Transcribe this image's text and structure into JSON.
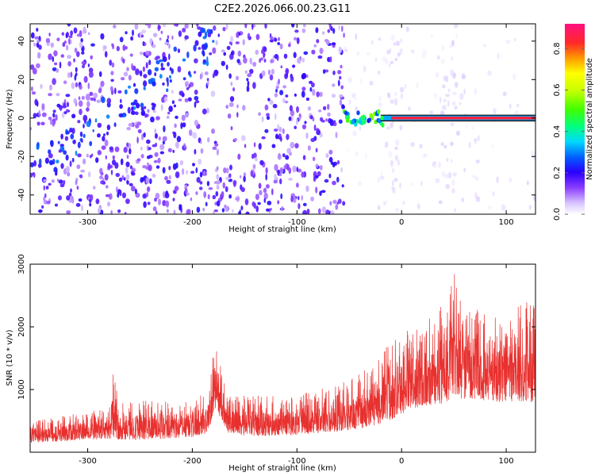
{
  "figure_title": "C2E2.2026.066.00.23.G11",
  "colors": {
    "snr_line": "#e8312f",
    "frame": "#000000"
  },
  "chart_data": [
    {
      "type": "heatmap",
      "title": "C2E2.2026.066.00.23.G11",
      "xlabel": "Height of straight line (km)",
      "ylabel": "Frequency (Hz)",
      "xlim": [
        -355,
        128
      ],
      "ylim": [
        -50,
        49
      ],
      "xticks": [
        -300,
        -200,
        -100,
        0,
        100
      ],
      "xtick_labels": [
        "-300",
        "-200",
        "-100",
        "0",
        "100"
      ],
      "yticks": [
        -40,
        -20,
        0,
        20,
        40
      ],
      "ytick_labels": [
        "-40",
        "-20",
        "0",
        "20",
        "40"
      ],
      "colorbar": {
        "label": "Normalized spectral amplitude",
        "range": [
          0,
          0.92
        ],
        "ticks": [
          0.0,
          0.2,
          0.4,
          0.6,
          0.8
        ],
        "tick_labels": [
          "0.0",
          "0.2",
          "0.4",
          "0.6",
          "0.8"
        ],
        "colormap": [
          "#ffffff",
          "#c8a8ff",
          "#7a2cff",
          "#2a00ff",
          "#0080ff",
          "#00e0ff",
          "#00ff60",
          "#a0ff00",
          "#ffff00",
          "#ff9000",
          "#ff2030",
          "#ff1080"
        ]
      },
      "features": {
        "carrier_track": {
          "x_start": -18,
          "x_end": 128,
          "frequency": 0,
          "amplitude": 0.85
        },
        "carrier_onset": {
          "x_start": -55,
          "x_end": -18,
          "frequency": 0,
          "amplitude": 0.35
        },
        "diagonal_noise_band": {
          "x_start": -350,
          "x_end": -180,
          "freq_start": -25,
          "freq_end": 40,
          "amplitude": 0.3
        },
        "noise_edge_x": -55
      }
    },
    {
      "type": "line",
      "xlabel": "Height of straight line (km)",
      "ylabel": "SNR (10 * v/v)",
      "xlim": [
        -355,
        128
      ],
      "ylim": [
        0,
        3000
      ],
      "xticks": [
        -300,
        -200,
        -100,
        0,
        100
      ],
      "xtick_labels": [
        "-300",
        "-200",
        "-100",
        "0",
        "100"
      ],
      "yticks": [
        1000,
        2000,
        3000
      ],
      "ytick_labels": [
        "1000",
        "2000",
        "3000"
      ],
      "series": [
        {
          "name": "SNR",
          "color": "#e8312f",
          "envelope": {
            "x": [
              -355,
              -330,
              -300,
              -280,
              -276,
              -270,
              -250,
              -220,
              -200,
              -185,
              -178,
              -172,
              -165,
              -150,
              -130,
              -110,
              -100,
              -80,
              -60,
              -40,
              -20,
              -10,
              0,
              10,
              30,
              45,
              50,
              55,
              70,
              90,
              110,
              128
            ],
            "low": [
              150,
              170,
              200,
              210,
              220,
              200,
              200,
              220,
              240,
              300,
              700,
              500,
              300,
              260,
              260,
              270,
              280,
              300,
              330,
              380,
              450,
              520,
              600,
              700,
              750,
              800,
              900,
              850,
              850,
              800,
              800,
              800
            ],
            "high": [
              500,
              560,
              650,
              700,
              1350,
              800,
              850,
              800,
              850,
              1000,
              1950,
              1300,
              950,
              900,
              900,
              900,
              950,
              1000,
              1100,
              1250,
              1500,
              1850,
              1950,
              2050,
              2150,
              2500,
              3000,
              2600,
              2300,
              2200,
              2400,
              2450
            ]
          }
        }
      ]
    }
  ]
}
